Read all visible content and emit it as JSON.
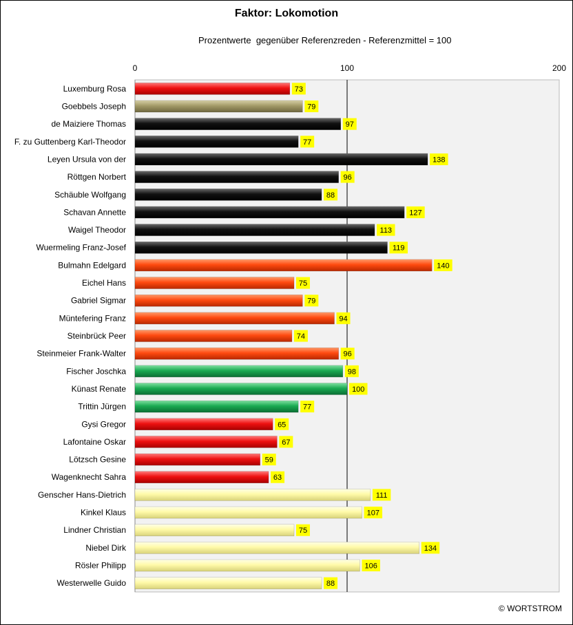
{
  "chart_data": {
    "type": "bar",
    "orientation": "horizontal",
    "title": "Faktor: Lokomotion",
    "subtitle": "Prozentwerte  gegenüber Referenzreden - Referenzmittel = 100",
    "xlim": [
      0,
      200
    ],
    "xticks": [
      0,
      100,
      200
    ],
    "grid": false,
    "reference_line": 100,
    "categories": [
      "Luxemburg Rosa",
      "Goebbels Joseph",
      "de Maiziere Thomas",
      "F. zu Guttenberg Karl-Theodor",
      "Leyen Ursula von der",
      "Röttgen Norbert",
      "Schäuble Wolfgang",
      "Schavan Annette",
      "Waigel Theodor",
      "Wuermeling Franz-Josef",
      "Bulmahn Edelgard",
      "Eichel Hans",
      "Gabriel Sigmar",
      "Müntefering Franz",
      "Steinbrück Peer",
      "Steinmeier Frank-Walter",
      "Fischer Joschka",
      "Künast Renate",
      "Trittin Jürgen",
      "Gysi Gregor",
      "Lafontaine Oskar",
      "Lötzsch Gesine",
      "Wagenknecht Sahra",
      "Genscher Hans-Dietrich",
      "Kinkel Klaus",
      "Lindner Christian",
      "Niebel Dirk",
      "Rösler Philipp",
      "Westerwelle Guido"
    ],
    "values": [
      73,
      79,
      97,
      77,
      138,
      96,
      88,
      127,
      113,
      119,
      140,
      75,
      79,
      94,
      74,
      96,
      98,
      100,
      77,
      65,
      67,
      59,
      63,
      111,
      107,
      75,
      134,
      106,
      88
    ],
    "bar_color_groups": [
      "red",
      "olive",
      "black",
      "black",
      "black",
      "black",
      "black",
      "black",
      "black",
      "black",
      "orange",
      "orange",
      "orange",
      "orange",
      "orange",
      "orange",
      "green",
      "green",
      "green",
      "red",
      "red",
      "red",
      "red",
      "yellow",
      "yellow",
      "yellow",
      "yellow",
      "yellow",
      "yellow"
    ],
    "colors": {
      "red": "#ee1111",
      "olive": "#a39a68",
      "black": "#111111",
      "orange": "#ff4a10",
      "green": "#1aaa52",
      "yellow": "#fffaa8",
      "label_bg": "#ffff00",
      "plot_bg": "#f2f2f2"
    }
  },
  "copyright": "© WORTSTROM"
}
